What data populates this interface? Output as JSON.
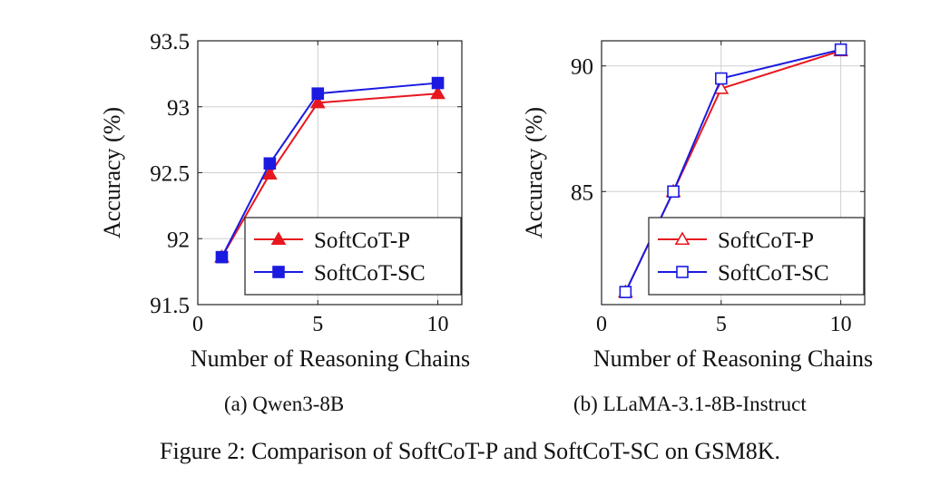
{
  "figure": {
    "caption": "Figure 2: Comparison of SoftCoT-P and SoftCoT-SC on GSM8K."
  },
  "colors": {
    "red": "#e8171f",
    "blue": "#1a1ae0",
    "grid": "#cfcfcf",
    "axis": "#222222"
  },
  "chart_data": [
    {
      "type": "line",
      "subcaption": "(a) Qwen3-8B",
      "xlabel": "Number of Reasoning Chains",
      "ylabel": "Accuracy (%)",
      "xlim": [
        0,
        11
      ],
      "ylim": [
        91.5,
        93.5
      ],
      "xticks": [
        0,
        5,
        10
      ],
      "xtick_labels": [
        "0",
        "5",
        "10"
      ],
      "yticks": [
        91.5,
        92,
        92.5,
        93,
        93.5
      ],
      "ytick_labels": [
        "91.5",
        "92",
        "92.5",
        "93",
        "93.5"
      ],
      "grid": true,
      "legend": "bottom-right",
      "series": [
        {
          "name": "SoftCoT-P",
          "color": "#e8171f",
          "marker": "filled-triangle",
          "x": [
            1,
            3,
            5,
            10
          ],
          "y": [
            91.86,
            92.49,
            93.03,
            93.1
          ]
        },
        {
          "name": "SoftCoT-SC",
          "color": "#1a1ae0",
          "marker": "filled-square",
          "x": [
            1,
            3,
            5,
            10
          ],
          "y": [
            91.86,
            92.57,
            93.1,
            93.18
          ]
        }
      ]
    },
    {
      "type": "line",
      "subcaption": "(b) LLaMA-3.1-8B-Instruct",
      "xlabel": "Number of Reasoning Chains",
      "ylabel": "Accuracy (%)",
      "xlim": [
        0,
        11
      ],
      "ylim": [
        80.5,
        91
      ],
      "xticks": [
        0,
        5,
        10
      ],
      "xtick_labels": [
        "0",
        "5",
        "10"
      ],
      "yticks": [
        85,
        90
      ],
      "ytick_labels": [
        "85",
        "90"
      ],
      "grid": true,
      "legend": "bottom-right",
      "series": [
        {
          "name": "SoftCoT-P",
          "color": "#e8171f",
          "marker": "open-triangle",
          "x": [
            1,
            3,
            5,
            10
          ],
          "y": [
            81.0,
            85.0,
            89.1,
            90.6
          ]
        },
        {
          "name": "SoftCoT-SC",
          "color": "#1a1ae0",
          "marker": "open-square",
          "x": [
            1,
            3,
            5,
            10
          ],
          "y": [
            81.0,
            85.0,
            89.5,
            90.65
          ]
        }
      ]
    }
  ]
}
